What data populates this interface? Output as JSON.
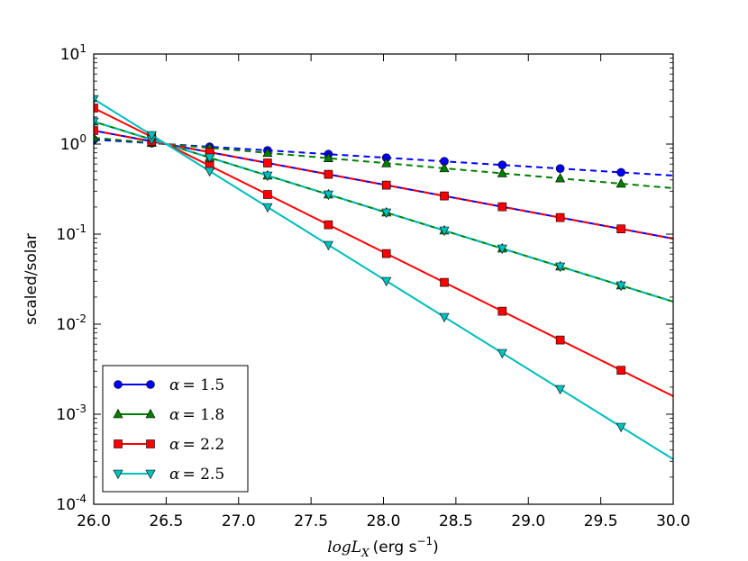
{
  "chart_data": {
    "type": "line",
    "title": "",
    "xlabel_math": "log",
    "xlabel_var": "L",
    "xlabel_sub": "X",
    "xlabel_units": "(erg s",
    "xlabel_exp": "−1",
    "xlabel_close": ")",
    "ylabel": "scaled/solar",
    "xlim": [
      26.0,
      30.0
    ],
    "ylim_log10": [
      -4,
      1
    ],
    "yscale": "log",
    "xticks": [
      26.0,
      26.5,
      27.0,
      27.5,
      28.0,
      28.5,
      29.0,
      29.5,
      30.0
    ],
    "xtick_labels": [
      "26.0",
      "26.5",
      "27.0",
      "27.5",
      "28.0",
      "28.5",
      "29.0",
      "29.5",
      "30.0"
    ],
    "yticks": [
      {
        "base": "10",
        "exp": "-4",
        "log": -4
      },
      {
        "base": "10",
        "exp": "-3",
        "log": -3
      },
      {
        "base": "10",
        "exp": "-2",
        "log": -2
      },
      {
        "base": "10",
        "exp": "-1",
        "log": -1
      },
      {
        "base": "10",
        "exp": "0",
        "log": 0
      },
      {
        "base": "10",
        "exp": "1",
        "log": 1
      }
    ],
    "marker_x": [
      26.0,
      26.4,
      26.8,
      27.2,
      27.62,
      28.02,
      28.42,
      28.82,
      29.22,
      29.64
    ],
    "legend_position": "lower-left",
    "series": [
      {
        "name": "α = 1.5",
        "label_sym": "α",
        "label_val": "= 1.5",
        "color": "#0000ff",
        "marker": "circle",
        "solid_pivot": 26.5,
        "solid_slope": -0.3,
        "dashed": [
          1.45,
          0.72
        ],
        "dashed_pivot": 26.5,
        "dashed_slope": -0.1
      },
      {
        "name": "α = 1.8",
        "label_sym": "α",
        "label_val": "= 1.8",
        "color": "#008000",
        "marker": "triangle-up",
        "solid_pivot": 26.5,
        "solid_slope": -0.5,
        "dashed": [
          1.6,
          0.38
        ],
        "dashed_pivot": 26.5,
        "dashed_slope": -0.14
      },
      {
        "name": "α = 2.2",
        "label_sym": "α",
        "label_val": "= 2.2",
        "color": "#ff0000",
        "marker": "square",
        "solid_pivot": 26.5,
        "solid_slope": -0.8,
        "dashed": [
          2.0,
          0.068
        ],
        "dashed_pivot": 26.5,
        "dashed_slope": -0.3
      },
      {
        "name": "α = 2.5",
        "label_sym": "α",
        "label_val": "= 2.5",
        "color": "#00bfbf",
        "marker": "triangle-down",
        "solid_pivot": 26.5,
        "solid_slope": -1.0,
        "dashed": [
          2.3,
          0.0135
        ],
        "dashed_pivot": 26.5,
        "dashed_slope": -0.5
      }
    ]
  }
}
